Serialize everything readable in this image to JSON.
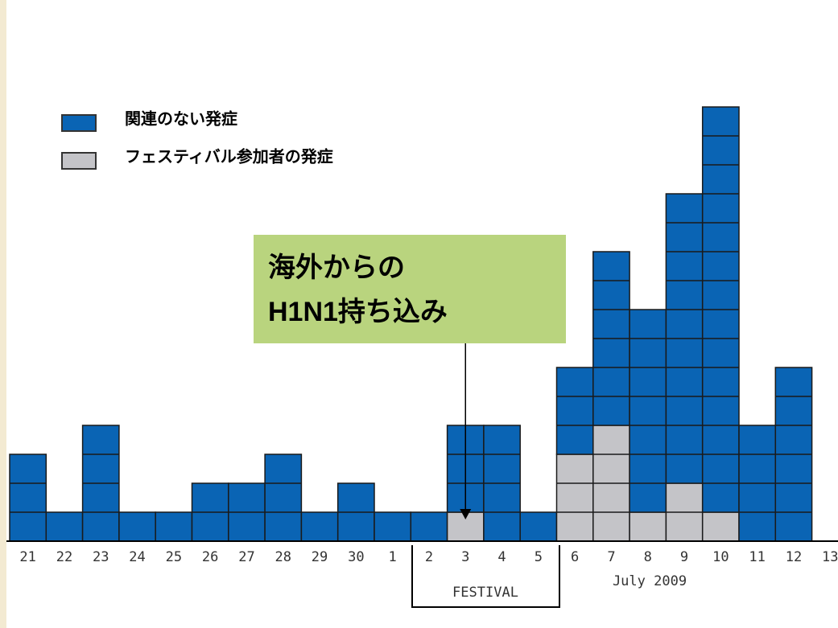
{
  "chart_data": {
    "type": "stacked_bar",
    "categories": [
      "21",
      "22",
      "23",
      "24",
      "25",
      "26",
      "27",
      "28",
      "29",
      "30",
      "1",
      "2",
      "3",
      "4",
      "5",
      "6",
      "7",
      "8",
      "9",
      "10",
      "11",
      "12",
      "13"
    ],
    "series": [
      {
        "name": "関連のない発症",
        "color": "#0a64b4",
        "values": [
          3,
          1,
          4,
          1,
          1,
          2,
          2,
          3,
          1,
          2,
          1,
          1,
          3,
          4,
          1,
          3,
          6,
          7,
          10,
          14,
          4,
          6,
          0
        ]
      },
      {
        "name": "フェスティバル参加者の発症",
        "color": "#c4c4c8",
        "values": [
          0,
          0,
          0,
          0,
          0,
          0,
          0,
          0,
          0,
          0,
          0,
          0,
          1,
          0,
          0,
          3,
          4,
          1,
          2,
          1,
          0,
          0,
          0
        ]
      }
    ],
    "annotation": {
      "lines": [
        "海外からの",
        "H1N1持ち込み"
      ],
      "category": "3"
    },
    "period_label": "FESTIVAL",
    "month_label": "July 2009"
  }
}
